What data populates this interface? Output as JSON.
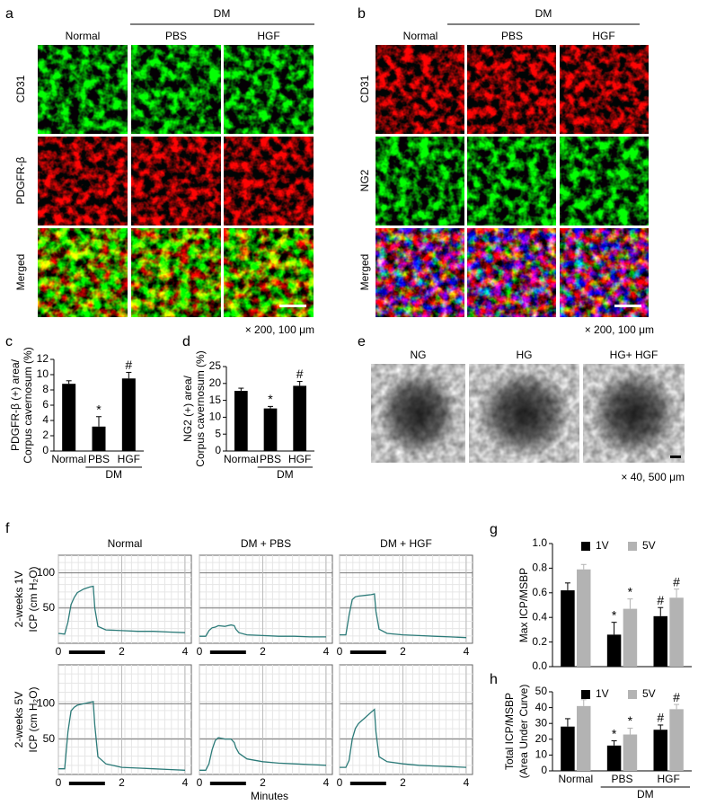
{
  "figure": {
    "a": {
      "label": "a",
      "group": "DM",
      "columns": [
        "Normal",
        "PBS",
        "HGF"
      ],
      "rows": [
        "CD31",
        "PDGFR-β",
        "Merged"
      ],
      "scale": "× 200, 100 μm"
    },
    "b": {
      "label": "b",
      "group": "DM",
      "columns": [
        "Normal",
        "PBS",
        "HGF"
      ],
      "rows": [
        "CD31",
        "NG2",
        "Merged"
      ],
      "scale": "× 200, 100 μm"
    },
    "e": {
      "label": "e",
      "columns": [
        "NG",
        "HG",
        "HG+ HGF"
      ],
      "scale": "× 40, 500 μm"
    },
    "f": {
      "label": "f",
      "columns": [
        "Normal",
        "DM + PBS",
        "DM + HGF"
      ],
      "rows": [
        [
          "2-weeks 1V",
          "ICP (cm H₂O)"
        ],
        [
          "2-weeks 5V",
          "ICP (cm H₂O)"
        ]
      ],
      "xlabel": "Minutes"
    }
  },
  "chart_data": [
    {
      "type": "bar",
      "panel": "c",
      "ylabel": [
        "PDGFR-β (+) area/",
        "Corpus cavernosum (%)"
      ],
      "categories": [
        "Normal",
        "PBS",
        "HGF"
      ],
      "group": "DM",
      "values": [
        8.8,
        3.2,
        9.5
      ],
      "errors": [
        0.4,
        1.3,
        0.8
      ],
      "annotations": [
        null,
        "*",
        "#"
      ],
      "color": "#000000",
      "ylim": [
        0,
        12
      ],
      "yticks": [
        0,
        2,
        4,
        6,
        8,
        10,
        12
      ]
    },
    {
      "type": "bar",
      "panel": "d",
      "ylabel": [
        "NG2 (+) area/",
        "Corpus cavernosum (%)"
      ],
      "categories": [
        "Normal",
        "PBS",
        "HGF"
      ],
      "group": "DM",
      "values": [
        17.8,
        12.6,
        19.3
      ],
      "errors": [
        0.8,
        0.6,
        1.3
      ],
      "annotations": [
        null,
        "*",
        "#"
      ],
      "color": "#000000",
      "ylim": [
        0,
        25
      ],
      "yticks": [
        0,
        5,
        10,
        15,
        20,
        25
      ]
    },
    {
      "type": "line",
      "x": [
        0,
        0.2,
        0.3,
        0.4,
        0.5,
        0.6,
        0.8,
        1.0,
        1.1,
        1.15,
        1.25,
        1.5,
        2,
        2.5,
        3,
        3.5,
        4
      ],
      "values": [
        14,
        13,
        30,
        55,
        65,
        72,
        77,
        80,
        81,
        50,
        24,
        19,
        18,
        17,
        17,
        16,
        15
      ],
      "color": "#2b7a78",
      "xlim": [
        0,
        4.2
      ],
      "xticks": [
        0,
        2,
        4
      ],
      "ylim": [
        0,
        125
      ],
      "yticks": [
        50,
        100
      ],
      "grid": true
    },
    {
      "type": "line",
      "x": [
        0,
        0.2,
        0.3,
        0.4,
        0.5,
        0.6,
        0.8,
        1.0,
        1.1,
        1.15,
        1.25,
        1.5,
        2,
        2.5,
        3,
        3.5,
        4
      ],
      "values": [
        10,
        10,
        18,
        22,
        23,
        25,
        24,
        26,
        25,
        20,
        15,
        12,
        11,
        10,
        10,
        9,
        9
      ],
      "color": "#2b7a78",
      "xlim": [
        0,
        4.2
      ],
      "xticks": [
        0,
        2,
        4
      ],
      "ylim": [
        0,
        125
      ],
      "yticks": [
        50,
        100
      ],
      "grid": true
    },
    {
      "type": "line",
      "x": [
        0,
        0.2,
        0.3,
        0.4,
        0.5,
        0.6,
        0.8,
        1.0,
        1.1,
        1.15,
        1.25,
        1.5,
        2,
        2.5,
        3,
        3.5,
        4
      ],
      "values": [
        12,
        12,
        40,
        62,
        66,
        67,
        68,
        69,
        70,
        45,
        20,
        14,
        12,
        11,
        10,
        9,
        8
      ],
      "color": "#2b7a78",
      "xlim": [
        0,
        4.2
      ],
      "xticks": [
        0,
        2,
        4
      ],
      "ylim": [
        0,
        125
      ],
      "yticks": [
        50,
        100
      ],
      "grid": true
    },
    {
      "type": "line",
      "x": [
        0,
        0.2,
        0.3,
        0.4,
        0.5,
        0.6,
        0.8,
        1.0,
        1.1,
        1.15,
        1.25,
        1.5,
        2,
        2.5,
        3,
        3.5,
        4
      ],
      "values": [
        8,
        8,
        60,
        90,
        95,
        98,
        100,
        102,
        103,
        70,
        25,
        15,
        10,
        9,
        8,
        7,
        6
      ],
      "color": "#2b7a78",
      "xlim": [
        0,
        4.2
      ],
      "xticks": [
        0,
        2,
        4
      ],
      "ylim": [
        0,
        155
      ],
      "yticks": [
        50,
        100
      ],
      "grid": true
    },
    {
      "type": "line",
      "x": [
        0,
        0.2,
        0.3,
        0.4,
        0.5,
        0.6,
        0.8,
        1.0,
        1.1,
        1.15,
        1.25,
        1.5,
        2,
        2.5,
        3,
        3.5,
        4
      ],
      "values": [
        6,
        6,
        15,
        35,
        48,
        52,
        50,
        50,
        45,
        38,
        30,
        22,
        18,
        16,
        15,
        14,
        13
      ],
      "color": "#2b7a78",
      "xlim": [
        0,
        4.2
      ],
      "xticks": [
        0,
        2,
        4
      ],
      "ylim": [
        0,
        155
      ],
      "yticks": [
        50,
        100
      ],
      "grid": true
    },
    {
      "type": "line",
      "x": [
        0,
        0.2,
        0.3,
        0.4,
        0.5,
        0.6,
        0.8,
        1.0,
        1.1,
        1.15,
        1.25,
        1.5,
        2,
        2.5,
        3,
        3.5,
        4
      ],
      "values": [
        10,
        10,
        20,
        50,
        65,
        72,
        80,
        88,
        92,
        60,
        25,
        18,
        15,
        13,
        12,
        11,
        10
      ],
      "color": "#2b7a78",
      "xlim": [
        0,
        4.2
      ],
      "xticks": [
        0,
        2,
        4
      ],
      "ylim": [
        0,
        155
      ],
      "yticks": [
        50,
        100
      ],
      "grid": true
    },
    {
      "type": "bar",
      "panel": "g",
      "ylabel": [
        "Max ICP/MSBP"
      ],
      "categories": [
        null,
        null,
        null
      ],
      "series": [
        {
          "name": "1V",
          "color": "#000000",
          "values": [
            0.62,
            0.26,
            0.41
          ],
          "errors": [
            0.06,
            0.1,
            0.07
          ],
          "annotations": [
            null,
            "*",
            "#"
          ]
        },
        {
          "name": "5V",
          "color": "#b3b3b3",
          "values": [
            0.79,
            0.47,
            0.56
          ],
          "errors": [
            0.04,
            0.08,
            0.07
          ],
          "annotations": [
            null,
            "*",
            "#"
          ]
        }
      ],
      "ylim": [
        0,
        1
      ],
      "yticks": [
        {
          "value": 0,
          "label": "0.0"
        },
        0.2,
        0.4,
        0.6,
        0.8,
        {
          "value": 1,
          "label": "1.0"
        }
      ]
    },
    {
      "type": "bar",
      "panel": "h",
      "ylabel": [
        "Total ICP/MSBP",
        "(Area Under Curve)"
      ],
      "categories": [
        "Normal",
        "PBS",
        "HGF"
      ],
      "group": "DM",
      "series": [
        {
          "name": "1V",
          "color": "#000000",
          "values": [
            28,
            16,
            26
          ],
          "errors": [
            5,
            3,
            3
          ],
          "annotations": [
            null,
            "*",
            "#"
          ]
        },
        {
          "name": "5V",
          "color": "#b3b3b3",
          "values": [
            41,
            23,
            39
          ],
          "errors": [
            4,
            4,
            3
          ],
          "annotations": [
            null,
            "*",
            "#"
          ]
        }
      ],
      "ylim": [
        0,
        50
      ],
      "yticks": [
        0,
        10,
        20,
        30,
        40,
        50
      ]
    }
  ]
}
